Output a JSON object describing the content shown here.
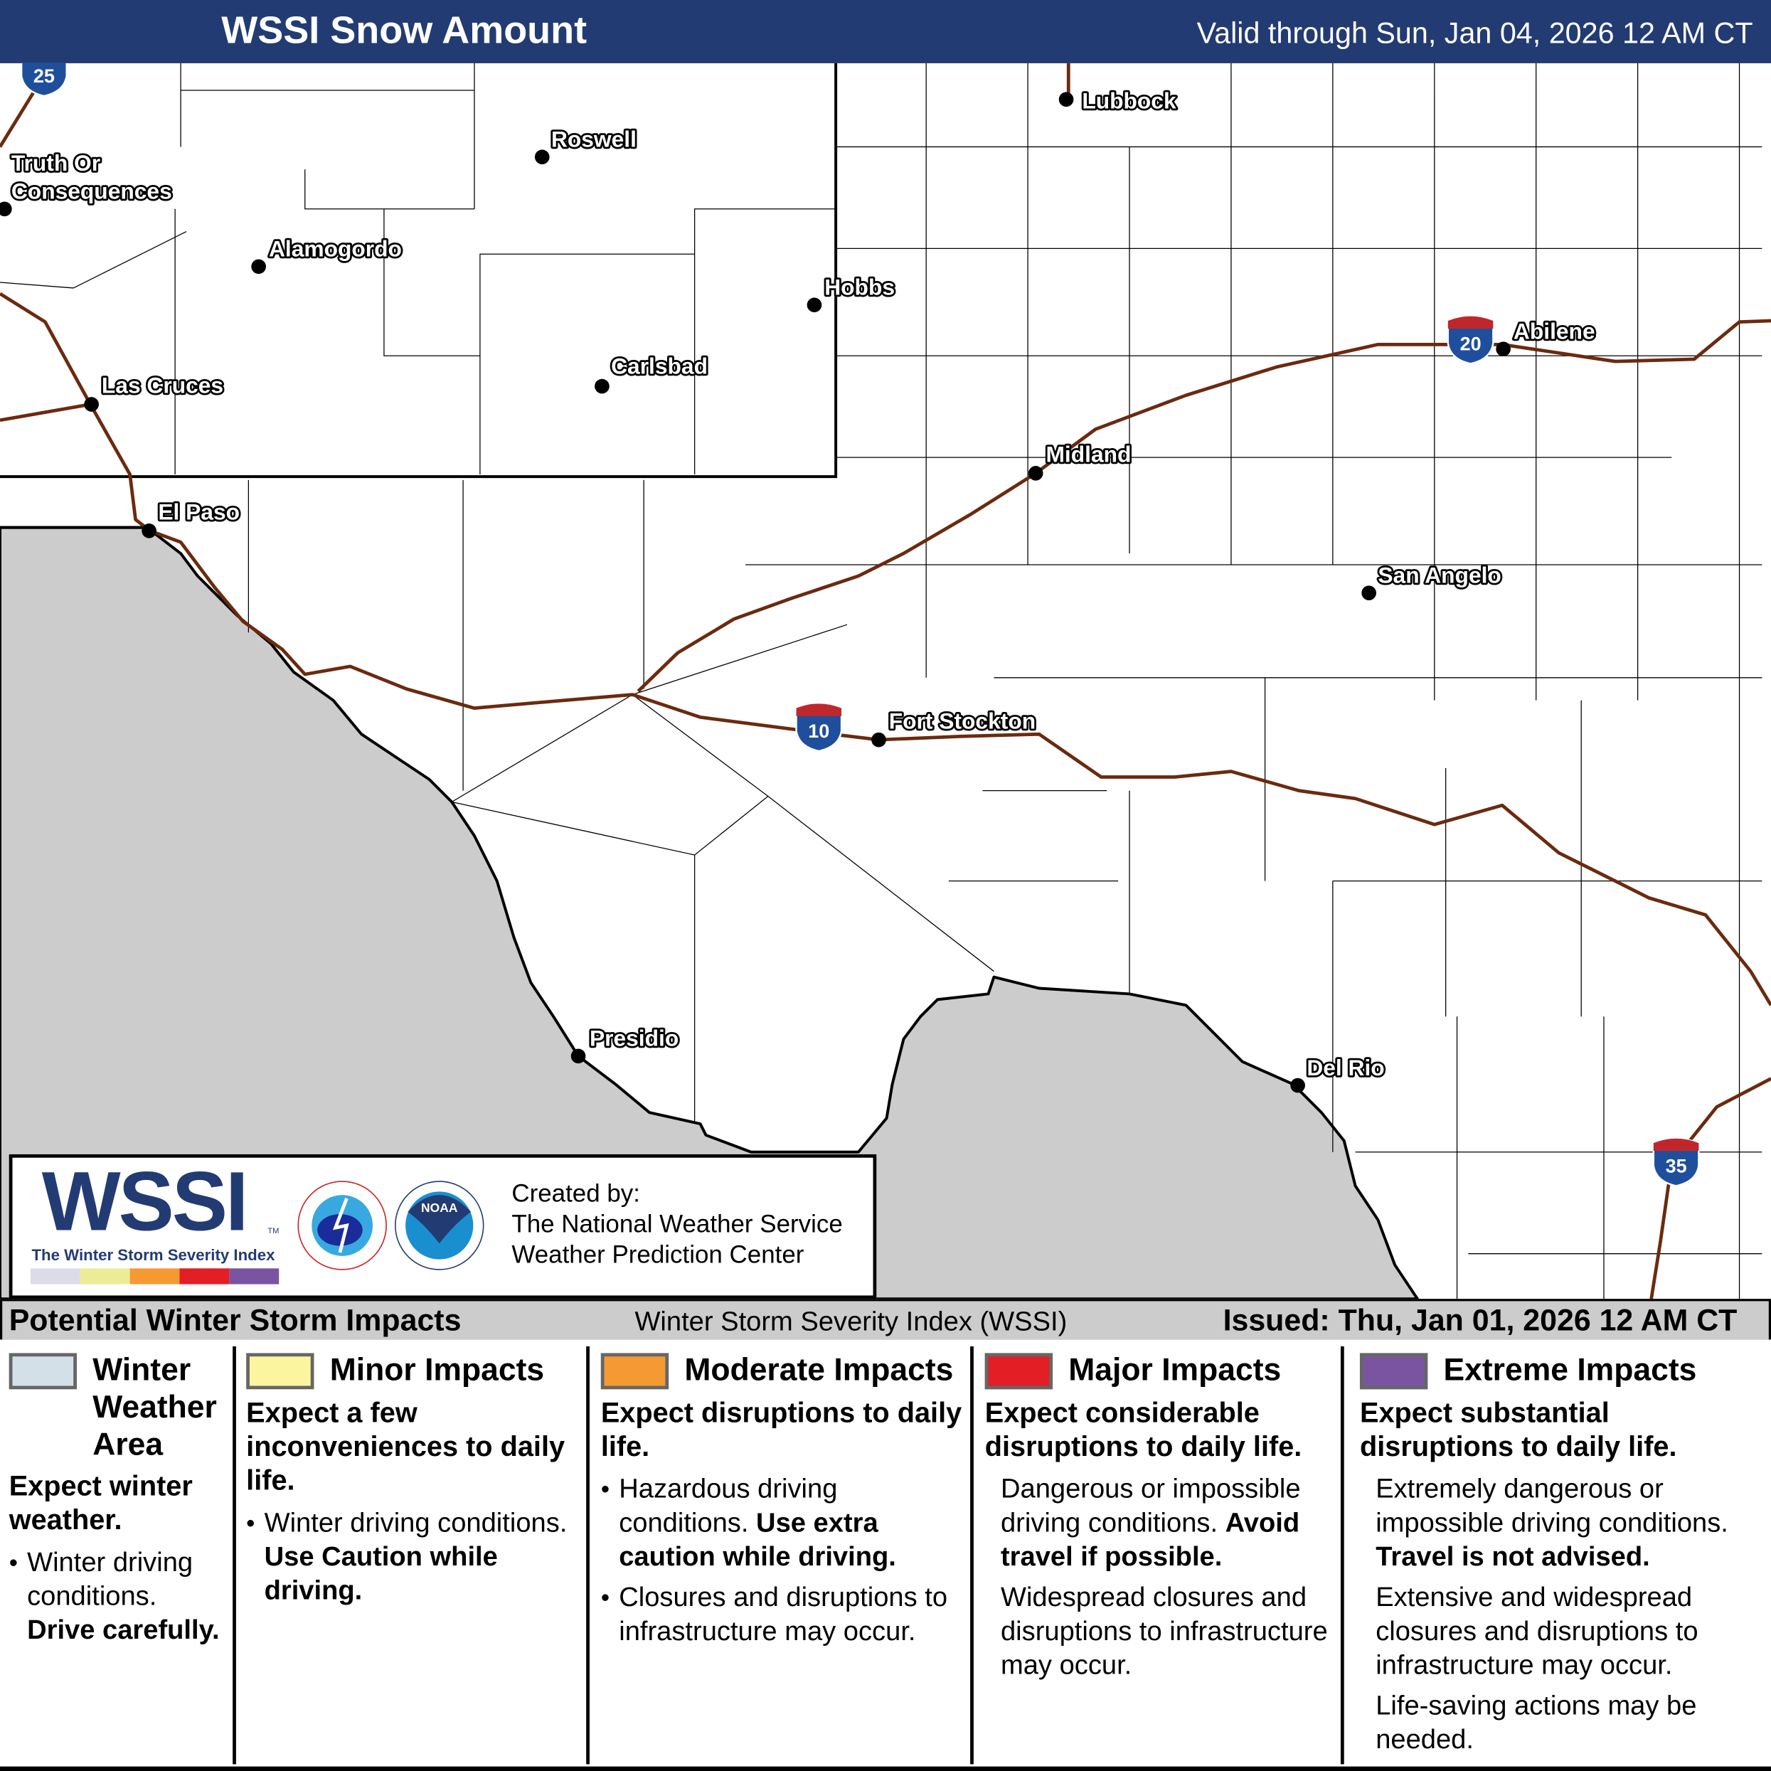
{
  "header": {
    "title": "WSSI Snow Amount",
    "valid": "Valid through Sun, Jan 04, 2026 12 AM CT"
  },
  "map": {
    "cities": [
      "Lubbock",
      "Roswell",
      "Truth Or",
      "Consequences",
      "Alamogordo",
      "Hobbs",
      "Abilene",
      "Carlsbad",
      "Las Cruces",
      "Midland",
      "El Paso",
      "San Angelo",
      "Fort Stockton",
      "Presidio",
      "Del Rio"
    ],
    "interstates": [
      "25",
      "20",
      "10",
      "35"
    ],
    "colors": {
      "land": "#ffffff",
      "mexico": "#cccccc",
      "highway": "#6b2a0f",
      "header": "#233b73"
    }
  },
  "logo": {
    "wordmark": "WSSI",
    "tagline": "The Winter Storm Severity Index",
    "tm": "TM",
    "nws_seal": "NATIONAL WEATHER SERVICE",
    "noaa_seal": "NOAA",
    "created_by": "Created by:",
    "org1": "The National Weather Service",
    "org2": "Weather Prediction Center",
    "scale_colors": [
      "#dcdce8",
      "#ecec96",
      "#f59a33",
      "#e31e24",
      "#7b54a1"
    ]
  },
  "bar": {
    "left": "Potential Winter Storm Impacts",
    "middle": "Winter Storm Severity Index (WSSI)",
    "issued": "Issued: Thu, Jan 01, 2026 12 AM CT"
  },
  "legend": [
    {
      "level": "Winter Weather Area",
      "color": "#d3e0e8",
      "expect": "Expect winter weather.",
      "items": [
        "Winter driving conditions.",
        "Drive carefully."
      ]
    },
    {
      "level": "Minor Impacts",
      "color": "#fbf5a0",
      "expect": "Expect a few inconveniences to daily life.",
      "items": [
        "Winter driving conditions.",
        "Use Caution while driving."
      ]
    },
    {
      "level": "Moderate Impacts",
      "color": "#f59a33",
      "expect": "Expect disruptions to daily life.",
      "items": [
        "Hazardous driving conditions.",
        "Use extra caution while driving.",
        "Closures and disruptions to infrastructure may occur."
      ]
    },
    {
      "level": "Major Impacts",
      "color": "#e31e24",
      "expect": "Expect considerable disruptions to daily life.",
      "items": [
        "Dangerous or impossible driving conditions.",
        "Avoid travel if possible.",
        "Widespread closures and disruptions to infrastructure may occur."
      ]
    },
    {
      "level": "Extreme Impacts",
      "color": "#7b54a1",
      "expect": "Expect substantial disruptions to daily life.",
      "items": [
        "Extremely dangerous or impossible driving conditions.",
        "Travel is not advised.",
        "Extensive and widespread closures and disruptions to infrastructure may occur.",
        "Life-saving actions may be needed."
      ]
    }
  ]
}
